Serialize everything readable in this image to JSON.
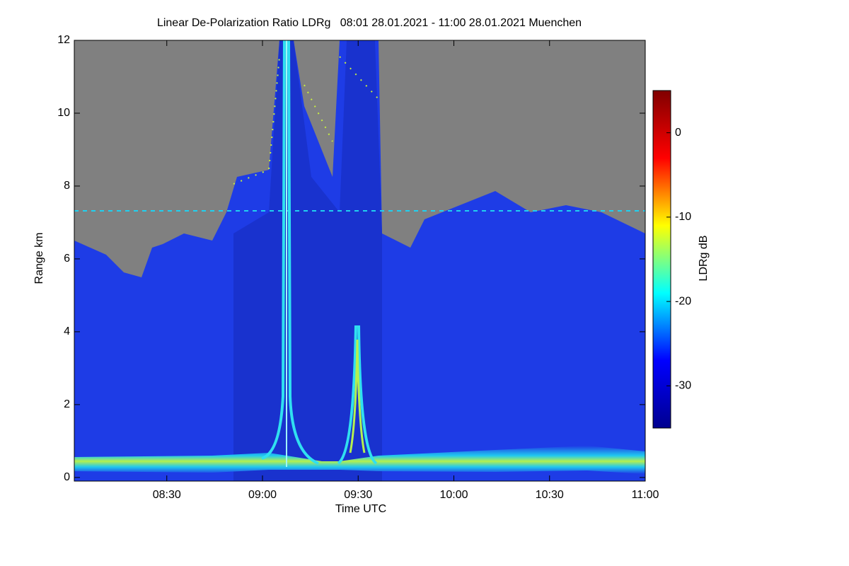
{
  "chart_data": {
    "type": "heatmap",
    "title": "Linear De-Polarization Ratio LDRg   08:01 28.01.2021 - 11:00 28.01.2021 Muenchen",
    "xlabel": "Time UTC",
    "ylabel": "Range km",
    "colorbar_label": "LDRg dB",
    "xlim": [
      "08:01",
      "11:00"
    ],
    "xticks": [
      "08:30",
      "09:00",
      "09:30",
      "10:00",
      "10:30",
      "11:00"
    ],
    "ylim": [
      -0.1,
      12
    ],
    "yticks": [
      0,
      2,
      4,
      6,
      8,
      10,
      12
    ],
    "zlim": [
      -35,
      5
    ],
    "zticks": [
      0,
      -10,
      -20,
      -30
    ],
    "colormap": "jet"
  }
}
